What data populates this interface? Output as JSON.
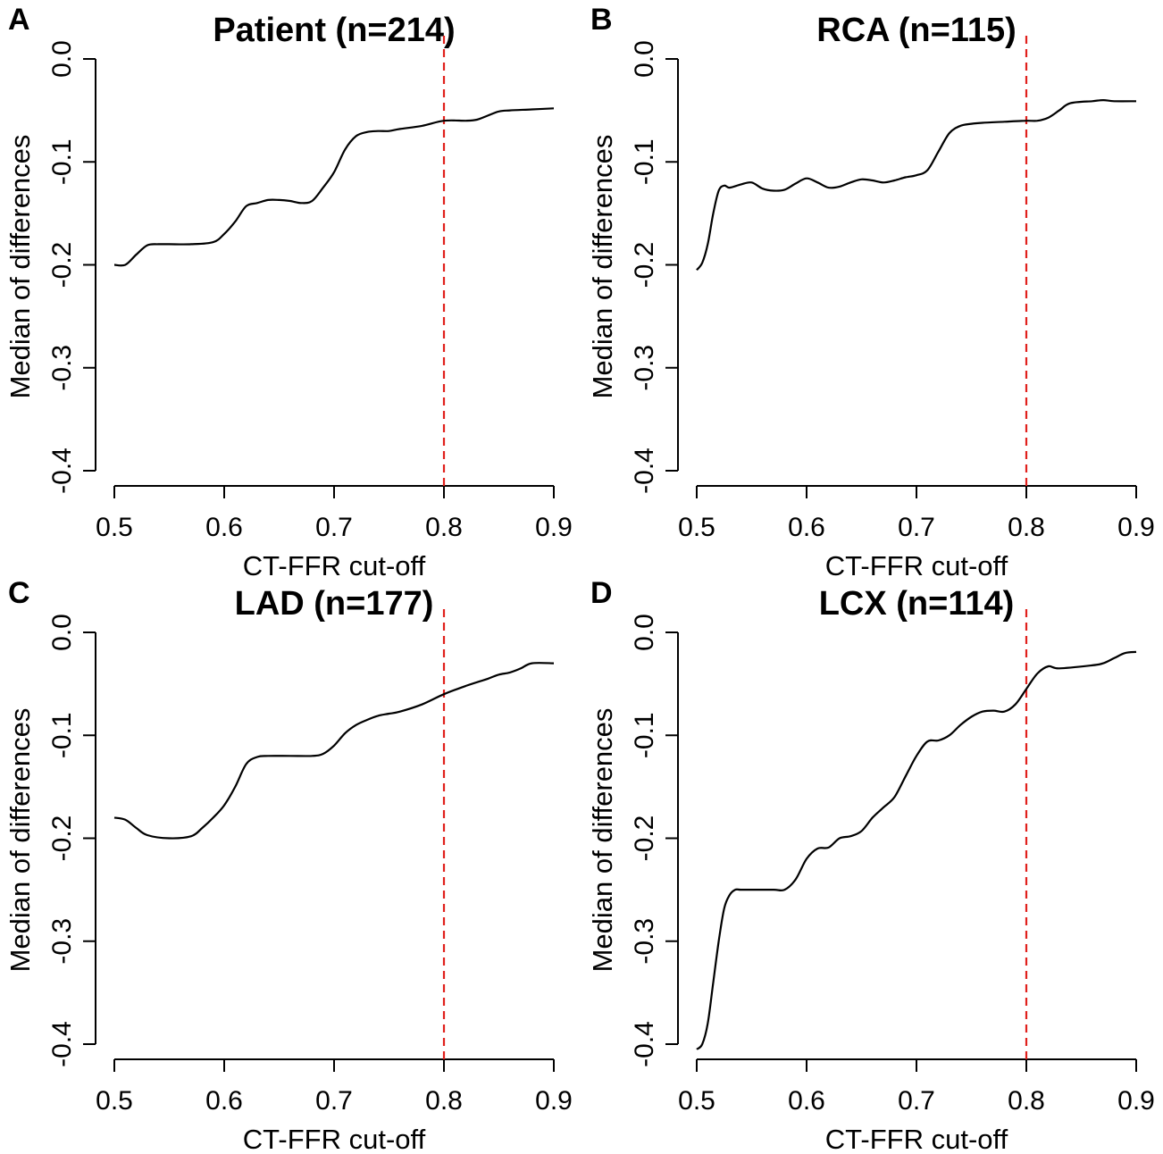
{
  "chart_data": [
    {
      "type": "line",
      "panel_label": "A",
      "title": "Patient (n=214)",
      "xlabel": "CT-FFR cut-off",
      "ylabel": "Median of differences",
      "xlim": [
        0.5,
        0.9
      ],
      "ylim": [
        -0.4,
        0.0
      ],
      "x_ticks": [
        "0.5",
        "0.6",
        "0.7",
        "0.8",
        "0.9"
      ],
      "y_ticks": [
        "0.0",
        "-0.1",
        "-0.2",
        "-0.3",
        "-0.4"
      ],
      "reference_x": 0.8,
      "reference_color": "#e0201c",
      "series": [
        {
          "x": [
            0.5,
            0.51,
            0.52,
            0.53,
            0.54,
            0.55,
            0.57,
            0.59,
            0.6,
            0.61,
            0.62,
            0.63,
            0.64,
            0.65,
            0.66,
            0.67,
            0.68,
            0.69,
            0.7,
            0.71,
            0.72,
            0.73,
            0.74,
            0.75,
            0.76,
            0.78,
            0.8,
            0.82,
            0.83,
            0.84,
            0.85,
            0.86,
            0.88,
            0.9
          ],
          "y": [
            -0.2,
            -0.2,
            -0.19,
            -0.181,
            -0.18,
            -0.18,
            -0.18,
            -0.178,
            -0.17,
            -0.158,
            -0.143,
            -0.14,
            -0.137,
            -0.137,
            -0.138,
            -0.14,
            -0.138,
            -0.125,
            -0.11,
            -0.088,
            -0.075,
            -0.071,
            -0.07,
            -0.07,
            -0.068,
            -0.065,
            -0.06,
            -0.06,
            -0.059,
            -0.055,
            -0.051,
            -0.05,
            -0.049,
            -0.048
          ]
        }
      ]
    },
    {
      "type": "line",
      "panel_label": "B",
      "title": "RCA (n=115)",
      "xlabel": "CT-FFR cut-off",
      "ylabel": "Median of differences",
      "xlim": [
        0.5,
        0.9
      ],
      "ylim": [
        -0.4,
        0.0
      ],
      "x_ticks": [
        "0.5",
        "0.6",
        "0.7",
        "0.8",
        "0.9"
      ],
      "y_ticks": [
        "0.0",
        "-0.1",
        "-0.2",
        "-0.3",
        "-0.4"
      ],
      "reference_x": 0.8,
      "reference_color": "#e0201c",
      "series": [
        {
          "x": [
            0.5,
            0.505,
            0.51,
            0.515,
            0.52,
            0.525,
            0.53,
            0.54,
            0.55,
            0.56,
            0.57,
            0.58,
            0.59,
            0.6,
            0.61,
            0.62,
            0.63,
            0.64,
            0.65,
            0.66,
            0.67,
            0.68,
            0.69,
            0.7,
            0.71,
            0.72,
            0.73,
            0.74,
            0.75,
            0.76,
            0.78,
            0.8,
            0.81,
            0.82,
            0.83,
            0.84,
            0.86,
            0.87,
            0.88,
            0.9
          ],
          "y": [
            -0.205,
            -0.198,
            -0.18,
            -0.15,
            -0.128,
            -0.123,
            -0.125,
            -0.122,
            -0.12,
            -0.126,
            -0.128,
            -0.127,
            -0.121,
            -0.116,
            -0.12,
            -0.125,
            -0.124,
            -0.12,
            -0.117,
            -0.118,
            -0.12,
            -0.118,
            -0.115,
            -0.113,
            -0.108,
            -0.09,
            -0.072,
            -0.065,
            -0.063,
            -0.062,
            -0.061,
            -0.06,
            -0.06,
            -0.057,
            -0.05,
            -0.043,
            -0.041,
            -0.04,
            -0.041,
            -0.041
          ]
        }
      ]
    },
    {
      "type": "line",
      "panel_label": "C",
      "title": "LAD (n=177)",
      "xlabel": "CT-FFR cut-off",
      "ylabel": "Median of differences",
      "xlim": [
        0.5,
        0.9
      ],
      "ylim": [
        -0.4,
        0.0
      ],
      "x_ticks": [
        "0.5",
        "0.6",
        "0.7",
        "0.8",
        "0.9"
      ],
      "y_ticks": [
        "0.0",
        "-0.1",
        "-0.2",
        "-0.3",
        "-0.4"
      ],
      "reference_x": 0.8,
      "reference_color": "#e0201c",
      "series": [
        {
          "x": [
            0.5,
            0.51,
            0.52,
            0.53,
            0.55,
            0.57,
            0.58,
            0.59,
            0.6,
            0.61,
            0.62,
            0.63,
            0.64,
            0.66,
            0.68,
            0.69,
            0.7,
            0.71,
            0.72,
            0.73,
            0.74,
            0.75,
            0.76,
            0.78,
            0.8,
            0.82,
            0.84,
            0.85,
            0.86,
            0.87,
            0.88,
            0.9
          ],
          "y": [
            -0.18,
            -0.182,
            -0.19,
            -0.197,
            -0.2,
            -0.198,
            -0.19,
            -0.18,
            -0.168,
            -0.15,
            -0.128,
            -0.121,
            -0.12,
            -0.12,
            -0.12,
            -0.118,
            -0.11,
            -0.098,
            -0.09,
            -0.085,
            -0.081,
            -0.079,
            -0.077,
            -0.07,
            -0.06,
            -0.052,
            -0.045,
            -0.041,
            -0.039,
            -0.035,
            -0.03,
            -0.03
          ]
        }
      ]
    },
    {
      "type": "line",
      "panel_label": "D",
      "title": "LCX (n=114)",
      "xlabel": "CT-FFR cut-off",
      "ylabel": "Median of differences",
      "xlim": [
        0.5,
        0.9
      ],
      "ylim": [
        -0.4,
        0.0
      ],
      "x_ticks": [
        "0.5",
        "0.6",
        "0.7",
        "0.8",
        "0.9"
      ],
      "y_ticks": [
        "0.0",
        "-0.1",
        "-0.2",
        "-0.3",
        "-0.4"
      ],
      "reference_x": 0.8,
      "reference_color": "#e0201c",
      "series": [
        {
          "x": [
            0.5,
            0.505,
            0.51,
            0.515,
            0.52,
            0.525,
            0.53,
            0.535,
            0.54,
            0.55,
            0.57,
            0.58,
            0.59,
            0.6,
            0.61,
            0.62,
            0.63,
            0.64,
            0.65,
            0.66,
            0.67,
            0.68,
            0.69,
            0.7,
            0.71,
            0.72,
            0.73,
            0.74,
            0.75,
            0.76,
            0.77,
            0.78,
            0.79,
            0.8,
            0.81,
            0.82,
            0.83,
            0.86,
            0.87,
            0.88,
            0.89,
            0.9
          ],
          "y": [
            -0.405,
            -0.4,
            -0.38,
            -0.34,
            -0.3,
            -0.268,
            -0.255,
            -0.25,
            -0.25,
            -0.25,
            -0.25,
            -0.25,
            -0.24,
            -0.22,
            -0.21,
            -0.209,
            -0.2,
            -0.198,
            -0.193,
            -0.18,
            -0.17,
            -0.16,
            -0.14,
            -0.12,
            -0.106,
            -0.105,
            -0.1,
            -0.09,
            -0.082,
            -0.077,
            -0.076,
            -0.077,
            -0.07,
            -0.055,
            -0.04,
            -0.033,
            -0.035,
            -0.032,
            -0.03,
            -0.025,
            -0.02,
            -0.019
          ]
        }
      ]
    }
  ]
}
